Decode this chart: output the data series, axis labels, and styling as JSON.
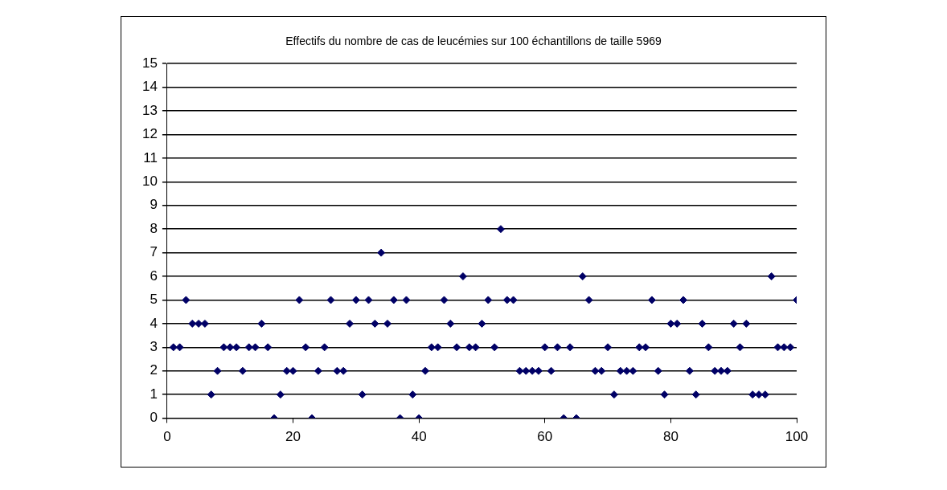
{
  "chart_data": {
    "type": "scatter",
    "title": "Effectifs du nombre de cas de leucémies sur 100 échantillons de taille 5969",
    "x": [
      1,
      2,
      3,
      4,
      5,
      6,
      7,
      8,
      9,
      10,
      11,
      12,
      13,
      14,
      15,
      16,
      17,
      18,
      19,
      20,
      21,
      22,
      23,
      24,
      25,
      26,
      27,
      28,
      29,
      30,
      31,
      32,
      33,
      34,
      35,
      36,
      37,
      38,
      39,
      40,
      41,
      42,
      43,
      44,
      45,
      46,
      47,
      48,
      49,
      50,
      51,
      52,
      53,
      54,
      55,
      56,
      57,
      58,
      59,
      60,
      61,
      62,
      63,
      64,
      65,
      66,
      67,
      68,
      69,
      70,
      71,
      72,
      73,
      74,
      75,
      76,
      77,
      78,
      79,
      80,
      81,
      82,
      83,
      84,
      85,
      86,
      87,
      88,
      89,
      90,
      91,
      92,
      93,
      94,
      95,
      96,
      97,
      98,
      99,
      100
    ],
    "values": [
      3,
      3,
      5,
      4,
      4,
      4,
      1,
      2,
      3,
      3,
      3,
      2,
      3,
      3,
      4,
      3,
      0,
      1,
      2,
      2,
      5,
      3,
      0,
      2,
      3,
      5,
      2,
      2,
      4,
      5,
      1,
      5,
      4,
      7,
      4,
      5,
      0,
      5,
      1,
      0,
      2,
      3,
      3,
      5,
      4,
      3,
      6,
      3,
      3,
      4,
      5,
      3,
      8,
      5,
      5,
      2,
      2,
      2,
      2,
      3,
      2,
      3,
      0,
      3,
      0,
      6,
      5,
      2,
      2,
      3,
      1,
      2,
      2,
      2,
      3,
      3,
      5,
      2,
      1,
      4,
      4,
      5,
      2,
      1,
      4,
      3,
      2,
      2,
      2,
      4,
      3,
      4,
      1,
      1,
      1,
      6,
      3,
      3,
      3,
      5
    ],
    "color": "#000066",
    "marker": "diamond",
    "xlim": [
      0,
      100
    ],
    "xticks": [
      0,
      20,
      40,
      60,
      80,
      100
    ],
    "ylim": [
      0,
      15
    ],
    "yticks": [
      0,
      1,
      2,
      3,
      4,
      5,
      6,
      7,
      8,
      9,
      10,
      11,
      12,
      13,
      14,
      15
    ],
    "grid": "y",
    "legend": false
  }
}
